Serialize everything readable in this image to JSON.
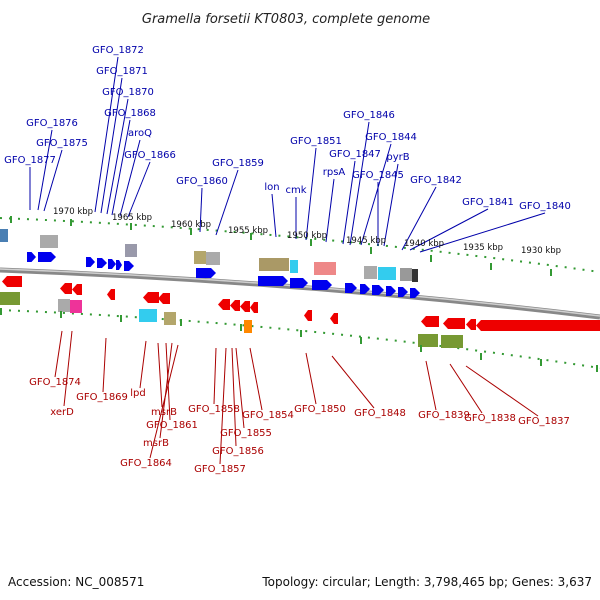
{
  "title": "Gramella forsetii KT0803, complete genome",
  "footer": {
    "accession": "Accession: NC_008571",
    "summary": "Topology: circular; Length: 3,798,465 bp; Genes: 3,637"
  },
  "colors": {
    "forward_gene": "#0000ee",
    "reverse_gene": "#ee0000",
    "forward_label": "#0000aa",
    "reverse_label": "#aa0000",
    "backbone": "#888888",
    "tick": "#339933"
  },
  "position_labels": [
    "1970 kbp",
    "1965 kbp",
    "1960 kbp",
    "1955 kbp",
    "1950 kbp",
    "1945 kbp",
    "1940 kbp",
    "1935 kbp",
    "1930 kbp"
  ],
  "forward_labels": [
    "GFO_1872",
    "GFO_1871",
    "GFO_1870",
    "GFO_1868",
    "aroQ",
    "GFO_1866",
    "GFO_1876",
    "GFO_1875",
    "GFO_1877",
    "GFO_1859",
    "GFO_1860",
    "GFO_1851",
    "lon",
    "cmk",
    "GFO_1846",
    "GFO_1847",
    "GFO_1844",
    "rpsA",
    "pyrB",
    "GFO_1845",
    "GFO_1842",
    "GFO_1841",
    "GFO_1840"
  ],
  "reverse_labels": [
    "GFO_1874",
    "xerD",
    "GFO_1869",
    "lpd",
    "msrB",
    "GFO_1861",
    "msrB",
    "GFO_1864",
    "GFO_1858",
    "GFO_1854",
    "GFO_1855",
    "GFO_1856",
    "GFO_1857",
    "GFO_1850",
    "GFO_1848",
    "GFO_1839",
    "GFO_1838",
    "GFO_1837"
  ]
}
